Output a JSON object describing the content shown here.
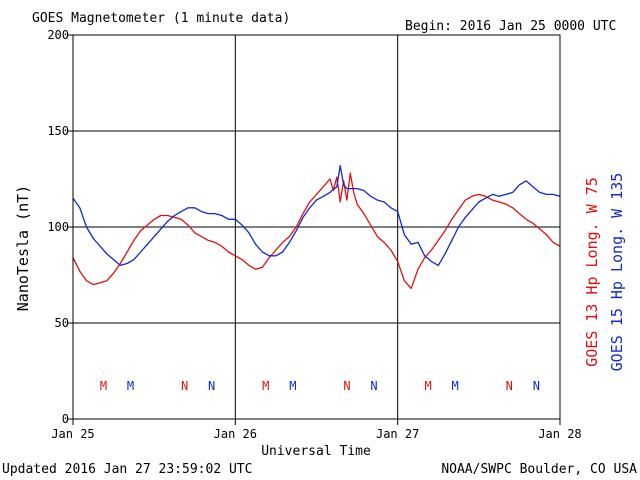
{
  "chart_data": {
    "type": "line",
    "title": "GOES Magnetometer (1 minute data)",
    "begin": "Begin:  2016 Jan 25 0000 UTC",
    "xlabel": "Universal Time",
    "ylabel": "NanoTesla (nT)",
    "updated": "Updated 2016 Jan 27 23:59:02 UTC",
    "source": "NOAA/SWPC Boulder, CO USA",
    "x_unit": "hours since 2016 Jan 25 0000 UTC",
    "xlim": [
      0,
      72
    ],
    "ylim": [
      0,
      200
    ],
    "yticks": [
      0,
      50,
      100,
      150,
      200
    ],
    "xticks": [
      {
        "x": 0,
        "label": "Jan 25"
      },
      {
        "x": 24,
        "label": "Jan 26"
      },
      {
        "x": 48,
        "label": "Jan 27"
      },
      {
        "x": 72,
        "label": "Jan 28"
      }
    ],
    "grid": true,
    "series": [
      {
        "name": "GOES 13 Hp  Long. W 75",
        "color": "#e01010",
        "x": [
          0,
          1,
          2,
          3,
          4,
          5,
          6,
          7,
          8,
          9,
          10,
          11,
          12,
          13,
          14,
          15,
          16,
          17,
          18,
          19,
          20,
          21,
          22,
          23,
          24,
          25,
          26,
          27,
          28,
          29,
          30,
          31,
          32,
          33,
          34,
          35,
          36,
          37,
          38,
          38.5,
          39,
          39.5,
          40,
          40.5,
          41,
          41.5,
          42,
          43,
          44,
          45,
          46,
          47,
          48,
          49,
          50,
          51,
          52,
          53,
          54,
          55,
          56,
          57,
          58,
          59,
          60,
          61,
          62,
          63,
          64,
          65,
          66,
          67,
          68,
          69,
          70,
          71,
          72
        ],
        "values": [
          84,
          77,
          72,
          70,
          71,
          72,
          76,
          81,
          87,
          93,
          98,
          101,
          104,
          106,
          106,
          105,
          104,
          101,
          97,
          95,
          93,
          92,
          90,
          87,
          85,
          83,
          80,
          78,
          79,
          84,
          88,
          92,
          95,
          100,
          107,
          113,
          117,
          121,
          125,
          119,
          126,
          113,
          124,
          114,
          128,
          118,
          112,
          107,
          101,
          95,
          92,
          88,
          82,
          72,
          68,
          78,
          84,
          88,
          93,
          98,
          104,
          109,
          114,
          116,
          117,
          116,
          114,
          113,
          112,
          110,
          107,
          104,
          102,
          99,
          96,
          92,
          90
        ]
      },
      {
        "name": "GOES 15 Hp  Long. W 135",
        "color": "#1028d0",
        "x": [
          0,
          1,
          2,
          3,
          4,
          5,
          6,
          7,
          8,
          9,
          10,
          11,
          12,
          13,
          14,
          15,
          16,
          17,
          18,
          19,
          20,
          21,
          22,
          23,
          24,
          25,
          26,
          27,
          28,
          29,
          30,
          31,
          32,
          33,
          34,
          35,
          36,
          37,
          38,
          39,
          39.5,
          40,
          40.5,
          41,
          42,
          43,
          44,
          45,
          46,
          47,
          48,
          49,
          50,
          51,
          52,
          53,
          54,
          55,
          56,
          57,
          58,
          59,
          60,
          61,
          62,
          63,
          64,
          65,
          66,
          67,
          68,
          69,
          70,
          71,
          72
        ],
        "values": [
          115,
          110,
          100,
          94,
          90,
          86,
          83,
          80,
          81,
          83,
          87,
          91,
          95,
          99,
          103,
          106,
          108,
          110,
          110,
          108,
          107,
          107,
          106,
          104,
          104,
          101,
          97,
          91,
          87,
          85,
          85,
          87,
          92,
          98,
          105,
          110,
          114,
          116,
          118,
          121,
          132,
          122,
          120,
          120,
          120,
          119,
          116,
          114,
          113,
          110,
          108,
          96,
          91,
          92,
          85,
          82,
          80,
          86,
          93,
          100,
          105,
          109,
          113,
          115,
          117,
          116,
          117,
          118,
          122,
          124,
          121,
          118,
          117,
          117,
          116
        ]
      }
    ],
    "markers": [
      {
        "letter": "M",
        "x": 4.5,
        "color": "#e01010"
      },
      {
        "letter": "M",
        "x": 8.5,
        "color": "#1028d0"
      },
      {
        "letter": "N",
        "x": 16.5,
        "color": "#e01010"
      },
      {
        "letter": "N",
        "x": 20.5,
        "color": "#1028d0"
      },
      {
        "letter": "M",
        "x": 28.5,
        "color": "#e01010"
      },
      {
        "letter": "M",
        "x": 32.5,
        "color": "#1028d0"
      },
      {
        "letter": "N",
        "x": 40.5,
        "color": "#e01010"
      },
      {
        "letter": "N",
        "x": 44.5,
        "color": "#1028d0"
      },
      {
        "letter": "M",
        "x": 52.5,
        "color": "#e01010"
      },
      {
        "letter": "M",
        "x": 56.5,
        "color": "#1028d0"
      },
      {
        "letter": "N",
        "x": 64.5,
        "color": "#e01010"
      },
      {
        "letter": "N",
        "x": 68.5,
        "color": "#1028d0"
      }
    ]
  }
}
